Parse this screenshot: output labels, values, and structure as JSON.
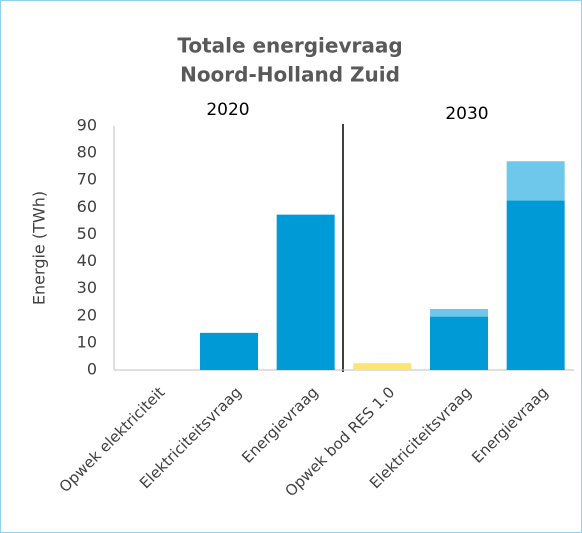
{
  "chart_data": {
    "type": "bar",
    "stacked": true,
    "title": [
      "Totale energievraag",
      "Noord-Holland Zuid"
    ],
    "ylabel": "Energie (TWh)",
    "categories": [
      "Opwek elektriciteit",
      "Elektriciteitsvraag",
      "Energievraag",
      "Opwek bod RES 1.0",
      "Elektriciteitsvraag",
      "Energievraag"
    ],
    "series": [
      {
        "color": "#009bd7",
        "values": [
          0,
          13.7,
          57.3,
          null,
          19.7,
          62.5
        ]
      },
      {
        "color": "#6ec8ec",
        "values": [
          null,
          null,
          null,
          null,
          2.8,
          14.5
        ]
      },
      {
        "color": "#fde36f",
        "values": [
          null,
          null,
          null,
          2.5,
          null,
          null
        ]
      }
    ],
    "annotations": [
      "2020",
      "2030"
    ],
    "ylim": [
      0,
      90
    ],
    "yticks": [
      0,
      10,
      20,
      30,
      40,
      50,
      60,
      70,
      80,
      90
    ],
    "grid": false
  }
}
